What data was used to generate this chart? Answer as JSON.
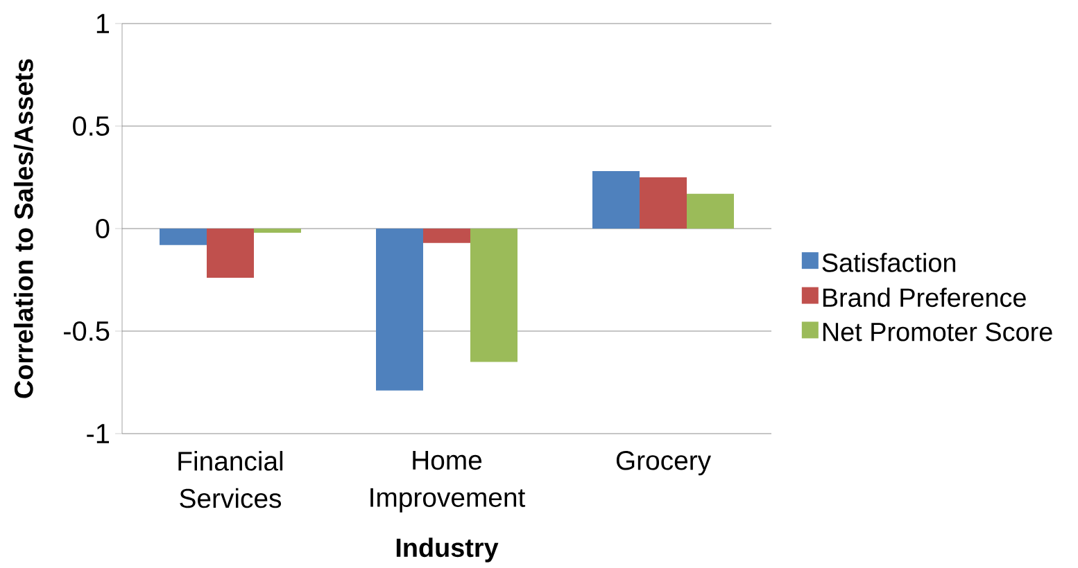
{
  "chart_data": {
    "type": "bar",
    "xlabel": "Industry",
    "ylabel": "Correlation to Sales/Assets",
    "categories": [
      "Financial Services",
      "Home Improvement",
      "Grocery"
    ],
    "series": [
      {
        "name": "Satisfaction",
        "color": "#4f81bd",
        "values": [
          -0.08,
          -0.79,
          0.28
        ]
      },
      {
        "name": "Brand Preference",
        "color": "#c0504d",
        "values": [
          -0.24,
          -0.07,
          0.25
        ]
      },
      {
        "name": "Net Promoter Score",
        "color": "#9bbb59",
        "values": [
          -0.02,
          -0.65,
          0.17
        ]
      }
    ],
    "ylim": [
      -1,
      1
    ],
    "yticks": [
      -1,
      -0.5,
      0,
      0.5,
      1
    ],
    "grid": "y",
    "legend": "right"
  }
}
